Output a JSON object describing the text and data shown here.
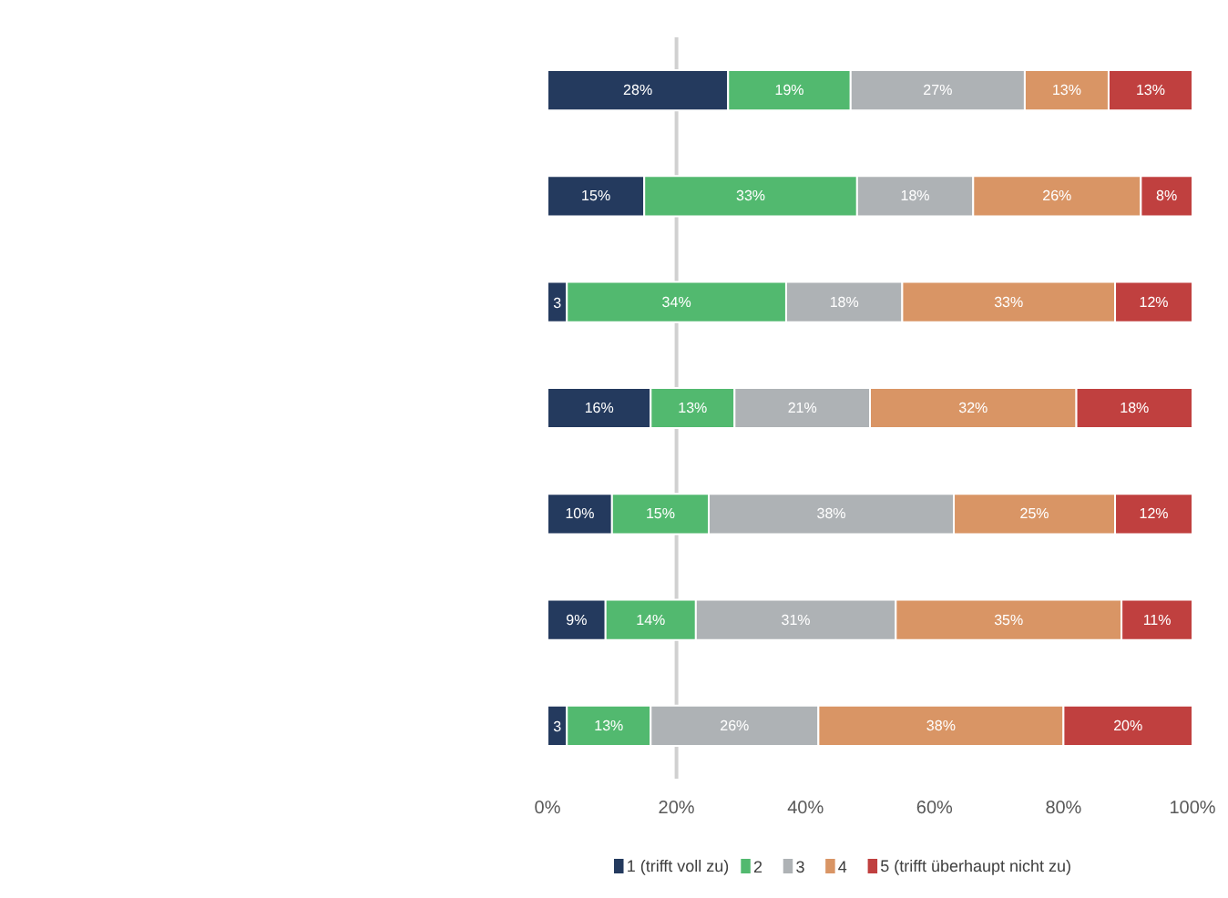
{
  "chart_data": {
    "type": "bar",
    "orientation": "horizontal",
    "stacked": true,
    "categories": [
      null,
      null,
      null,
      null,
      null,
      null,
      null
    ],
    "series": [
      {
        "name": "1 (trifft voll zu)",
        "color": "#243a5e",
        "values": [
          28,
          15,
          3,
          16,
          10,
          9,
          3
        ],
        "value_labels": [
          "28%",
          "15%",
          "3",
          "16%",
          "10%",
          "9%",
          "3"
        ]
      },
      {
        "name": "2",
        "color": "#52b96f",
        "values": [
          19,
          33,
          34,
          13,
          15,
          14,
          13
        ],
        "value_labels": [
          "19%",
          "33%",
          "34%",
          "13%",
          "15%",
          "14%",
          "13%"
        ]
      },
      {
        "name": "3",
        "color": "#aeb2b5",
        "values": [
          27,
          18,
          18,
          21,
          38,
          31,
          26
        ],
        "value_labels": [
          "27%",
          "18%",
          "18%",
          "21%",
          "38%",
          "31%",
          "26%"
        ]
      },
      {
        "name": "4",
        "color": "#d99565",
        "values": [
          13,
          26,
          33,
          32,
          25,
          35,
          38
        ],
        "value_labels": [
          "13%",
          "26%",
          "33%",
          "32%",
          "25%",
          "35%",
          "38%"
        ]
      },
      {
        "name": "5 (trifft überhaupt nicht zu)",
        "color": "#c0403f",
        "values": [
          13,
          8,
          12,
          18,
          12,
          11,
          20
        ],
        "value_labels": [
          "13%",
          "8%",
          "12%",
          "18%",
          "12%",
          "11%",
          "20%"
        ]
      }
    ],
    "xlim": [
      0,
      100
    ],
    "xticks": [
      {
        "value": 0,
        "label": "0%"
      },
      {
        "value": 20,
        "label": "20%"
      },
      {
        "value": 40,
        "label": "40%"
      },
      {
        "value": 60,
        "label": "60%"
      },
      {
        "value": 80,
        "label": "80%"
      },
      {
        "value": 100,
        "label": "100%"
      }
    ],
    "ref_lines": [
      {
        "axis": "x",
        "value": 20,
        "color": "#d0d0d0"
      }
    ],
    "grid": false,
    "legend": "bottom"
  }
}
